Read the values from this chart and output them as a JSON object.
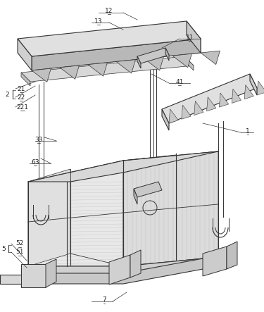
{
  "bg_color": "#ffffff",
  "lc": "#333333",
  "lc2": "#555555",
  "fill_white": "#f5f5f5",
  "fill_light": "#e8e8e8",
  "fill_mid": "#d0d0d0",
  "fill_dark": "#b8b8b8",
  "fill_darker": "#999999",
  "hatch_color": "#aaaaaa",
  "figsize": [
    3.75,
    4.43
  ],
  "dpi": 100
}
